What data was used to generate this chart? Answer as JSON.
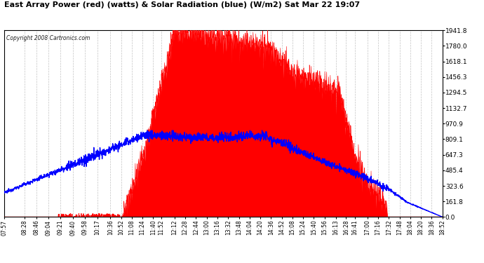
{
  "title": "East Array Power (red) (watts) & Solar Radiation (blue) (W/m2) Sat Mar 22 19:07",
  "copyright": "Copyright 2008 Cartronics.com",
  "background_color": "#ffffff",
  "plot_bg_color": "#ffffff",
  "grid_color": "#aaaaaa",
  "red_fill_color": "#ff0000",
  "blue_line_color": "#0000ff",
  "y_right_labels": [
    "0.0",
    "161.8",
    "323.6",
    "485.4",
    "647.3",
    "809.1",
    "970.9",
    "1132.7",
    "1294.5",
    "1456.3",
    "1618.1",
    "1780.0",
    "1941.8"
  ],
  "y_right_values": [
    0.0,
    161.8,
    323.6,
    485.4,
    647.3,
    809.1,
    970.9,
    1132.7,
    1294.5,
    1456.3,
    1618.1,
    1780.0,
    1941.8
  ],
  "x_tick_labels": [
    "07:57",
    "08:28",
    "08:46",
    "09:04",
    "09:21",
    "09:40",
    "09:58",
    "10:17",
    "10:36",
    "10:52",
    "11:08",
    "11:24",
    "11:40",
    "11:52",
    "12:12",
    "12:28",
    "12:44",
    "13:00",
    "13:16",
    "13:32",
    "13:48",
    "14:04",
    "14:20",
    "14:36",
    "14:52",
    "15:08",
    "15:24",
    "15:40",
    "15:56",
    "16:13",
    "16:28",
    "16:41",
    "17:00",
    "17:16",
    "17:32",
    "17:48",
    "18:04",
    "18:20",
    "18:36",
    "18:52"
  ],
  "ymax": 1941.8,
  "ymin": 0.0
}
